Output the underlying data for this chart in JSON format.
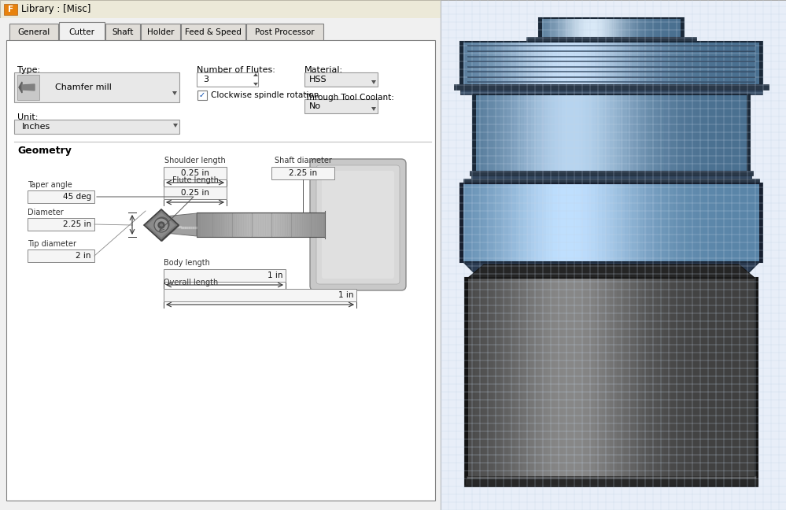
{
  "title": "Library : [Misc]",
  "title_icon_color": "#E8820C",
  "bg_color": "#D4D0C8",
  "panel_bg": "#F0F0F0",
  "tab_active": "Cutter",
  "tabs": [
    "General",
    "Cutter",
    "Shaft",
    "Holder",
    "Feed & Speed",
    "Post Processor"
  ],
  "type_label": "Type:",
  "type_value": "Chamfer mill",
  "num_flutes_label": "Number of Flutes:",
  "num_flutes_value": "3",
  "clockwise_label": "Clockwise spindle rotation",
  "material_label": "Material:",
  "material_value": "HSS",
  "coolant_label": "Through Tool Coolant:",
  "coolant_value": "No",
  "unit_label": "Unit:",
  "unit_value": "Inches",
  "geometry_title": "Geometry",
  "shoulder_length_label": "Shoulder length",
  "shoulder_length_value": "0.25 in",
  "shaft_diameter_label": "Shaft diameter",
  "shaft_diameter_value": "2.25 in",
  "flute_length_label": "Flute length",
  "flute_length_value": "0.25 in",
  "taper_angle_label": "Taper angle",
  "taper_angle_value": "45 deg",
  "diameter_label": "Diameter",
  "diameter_value": "2.25 in",
  "tip_diameter_label": "Tip diameter",
  "tip_diameter_value": "2 in",
  "body_length_label": "Body length",
  "body_length_value": "1 in",
  "overall_length_label": "Overall length",
  "overall_length_value": "1 in",
  "grid_bg": "#E8EEF8",
  "grid_line_color": "#C5D5E8"
}
